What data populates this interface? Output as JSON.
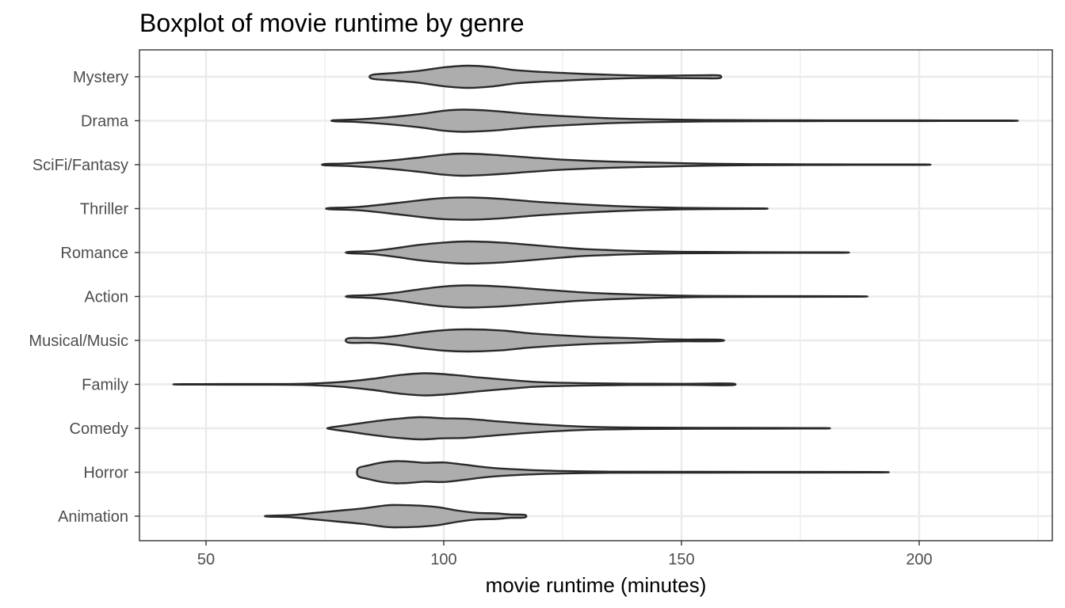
{
  "chart_data": {
    "type": "violin",
    "title": "Boxplot of movie runtime by genre",
    "xlabel": "movie runtime (minutes)",
    "ylabel": "",
    "xlim": [
      36,
      228
    ],
    "x_ticks": [
      50,
      100,
      150,
      200
    ],
    "x_tick_labels": [
      "50",
      "100",
      "150",
      "200"
    ],
    "categories": [
      "Animation",
      "Horror",
      "Comedy",
      "Family",
      "Musical/Music",
      "Action",
      "Romance",
      "Thriller",
      "SciFi/Fantasy",
      "Drama",
      "Mystery"
    ],
    "grid": true,
    "fill_color": "#adadad",
    "outline_color": "#2a2a2a",
    "series": [
      {
        "category": "Mystery",
        "min": 85,
        "max": 158,
        "density": [
          [
            85,
            0.18
          ],
          [
            90,
            0.35
          ],
          [
            95,
            0.55
          ],
          [
            100,
            0.85
          ],
          [
            105,
            1.0
          ],
          [
            110,
            0.88
          ],
          [
            115,
            0.6
          ],
          [
            120,
            0.45
          ],
          [
            125,
            0.35
          ],
          [
            130,
            0.25
          ],
          [
            135,
            0.18
          ],
          [
            140,
            0.12
          ],
          [
            145,
            0.09
          ],
          [
            150,
            0.12
          ],
          [
            155,
            0.14
          ],
          [
            158,
            0.12
          ]
        ]
      },
      {
        "category": "Drama",
        "min": 77,
        "max": 219,
        "density": [
          [
            77,
            0.05
          ],
          [
            82,
            0.12
          ],
          [
            88,
            0.3
          ],
          [
            95,
            0.6
          ],
          [
            100,
            0.9
          ],
          [
            104,
            1.0
          ],
          [
            110,
            0.9
          ],
          [
            118,
            0.6
          ],
          [
            125,
            0.42
          ],
          [
            135,
            0.22
          ],
          [
            145,
            0.12
          ],
          [
            155,
            0.07
          ],
          [
            170,
            0.04
          ],
          [
            190,
            0.03
          ],
          [
            205,
            0.025
          ],
          [
            219,
            0.02
          ]
        ]
      },
      {
        "category": "SciFi/Fantasy",
        "min": 75,
        "max": 201,
        "density": [
          [
            75,
            0.06
          ],
          [
            80,
            0.12
          ],
          [
            88,
            0.35
          ],
          [
            95,
            0.65
          ],
          [
            100,
            0.9
          ],
          [
            104,
            1.0
          ],
          [
            110,
            0.9
          ],
          [
            118,
            0.65
          ],
          [
            125,
            0.45
          ],
          [
            135,
            0.28
          ],
          [
            145,
            0.18
          ],
          [
            155,
            0.09
          ],
          [
            165,
            0.05
          ],
          [
            180,
            0.03
          ],
          [
            190,
            0.02
          ],
          [
            201,
            0.02
          ]
        ]
      },
      {
        "category": "Thriller",
        "min": 76,
        "max": 167,
        "density": [
          [
            76,
            0.06
          ],
          [
            82,
            0.15
          ],
          [
            90,
            0.5
          ],
          [
            96,
            0.8
          ],
          [
            100,
            0.95
          ],
          [
            106,
            1.0
          ],
          [
            112,
            0.88
          ],
          [
            120,
            0.6
          ],
          [
            128,
            0.4
          ],
          [
            135,
            0.25
          ],
          [
            142,
            0.14
          ],
          [
            150,
            0.07
          ],
          [
            158,
            0.04
          ],
          [
            167,
            0.02
          ]
        ]
      },
      {
        "category": "Romance",
        "min": 80,
        "max": 183,
        "density": [
          [
            80,
            0.06
          ],
          [
            85,
            0.15
          ],
          [
            90,
            0.4
          ],
          [
            95,
            0.7
          ],
          [
            100,
            0.9
          ],
          [
            105,
            1.0
          ],
          [
            112,
            0.9
          ],
          [
            118,
            0.7
          ],
          [
            125,
            0.45
          ],
          [
            130,
            0.3
          ],
          [
            140,
            0.15
          ],
          [
            150,
            0.07
          ],
          [
            165,
            0.03
          ],
          [
            183,
            0.02
          ]
        ]
      },
      {
        "category": "Action",
        "min": 80,
        "max": 187,
        "density": [
          [
            80,
            0.06
          ],
          [
            85,
            0.14
          ],
          [
            90,
            0.35
          ],
          [
            95,
            0.65
          ],
          [
            100,
            0.9
          ],
          [
            105,
            1.0
          ],
          [
            112,
            0.9
          ],
          [
            120,
            0.65
          ],
          [
            128,
            0.4
          ],
          [
            135,
            0.25
          ],
          [
            145,
            0.12
          ],
          [
            155,
            0.05
          ],
          [
            170,
            0.03
          ],
          [
            187,
            0.02
          ]
        ]
      },
      {
        "category": "Musical/Music",
        "min": 80,
        "max": 158,
        "density": [
          [
            80,
            0.2
          ],
          [
            85,
            0.22
          ],
          [
            90,
            0.4
          ],
          [
            95,
            0.7
          ],
          [
            100,
            0.92
          ],
          [
            105,
            1.0
          ],
          [
            112,
            0.9
          ],
          [
            118,
            0.65
          ],
          [
            125,
            0.45
          ],
          [
            132,
            0.3
          ],
          [
            140,
            0.2
          ],
          [
            145,
            0.12
          ],
          [
            150,
            0.08
          ],
          [
            158,
            0.07
          ]
        ]
      },
      {
        "category": "Family",
        "min": 45,
        "max": 161,
        "density": [
          [
            45,
            0.02
          ],
          [
            60,
            0.03
          ],
          [
            70,
            0.05
          ],
          [
            78,
            0.2
          ],
          [
            85,
            0.5
          ],
          [
            90,
            0.8
          ],
          [
            96,
            1.0
          ],
          [
            102,
            0.85
          ],
          [
            108,
            0.6
          ],
          [
            115,
            0.35
          ],
          [
            120,
            0.2
          ],
          [
            130,
            0.1
          ],
          [
            140,
            0.06
          ],
          [
            150,
            0.05
          ],
          [
            158,
            0.08
          ],
          [
            161,
            0.06
          ]
        ]
      },
      {
        "category": "Comedy",
        "min": 76,
        "max": 180,
        "density": [
          [
            76,
            0.06
          ],
          [
            80,
            0.3
          ],
          [
            85,
            0.6
          ],
          [
            90,
            0.85
          ],
          [
            95,
            1.0
          ],
          [
            100,
            0.9
          ],
          [
            105,
            0.85
          ],
          [
            112,
            0.6
          ],
          [
            120,
            0.35
          ],
          [
            130,
            0.14
          ],
          [
            140,
            0.07
          ],
          [
            155,
            0.04
          ],
          [
            170,
            0.03
          ],
          [
            180,
            0.02
          ]
        ]
      },
      {
        "category": "Horror",
        "min": 82,
        "max": 191,
        "density": [
          [
            82,
            0.35
          ],
          [
            84,
            0.6
          ],
          [
            87,
            0.88
          ],
          [
            90,
            1.0
          ],
          [
            93,
            0.95
          ],
          [
            96,
            0.85
          ],
          [
            100,
            0.88
          ],
          [
            104,
            0.7
          ],
          [
            110,
            0.4
          ],
          [
            118,
            0.2
          ],
          [
            126,
            0.1
          ],
          [
            135,
            0.05
          ],
          [
            150,
            0.04
          ],
          [
            170,
            0.03
          ],
          [
            191,
            0.02
          ]
        ]
      },
      {
        "category": "Animation",
        "min": 63,
        "max": 117,
        "density": [
          [
            63,
            0.04
          ],
          [
            68,
            0.1
          ],
          [
            73,
            0.3
          ],
          [
            78,
            0.5
          ],
          [
            83,
            0.7
          ],
          [
            88,
            0.98
          ],
          [
            91,
            1.0
          ],
          [
            95,
            0.95
          ],
          [
            99,
            0.8
          ],
          [
            103,
            0.5
          ],
          [
            107,
            0.3
          ],
          [
            111,
            0.25
          ],
          [
            114,
            0.15
          ],
          [
            117,
            0.12
          ]
        ]
      }
    ]
  }
}
